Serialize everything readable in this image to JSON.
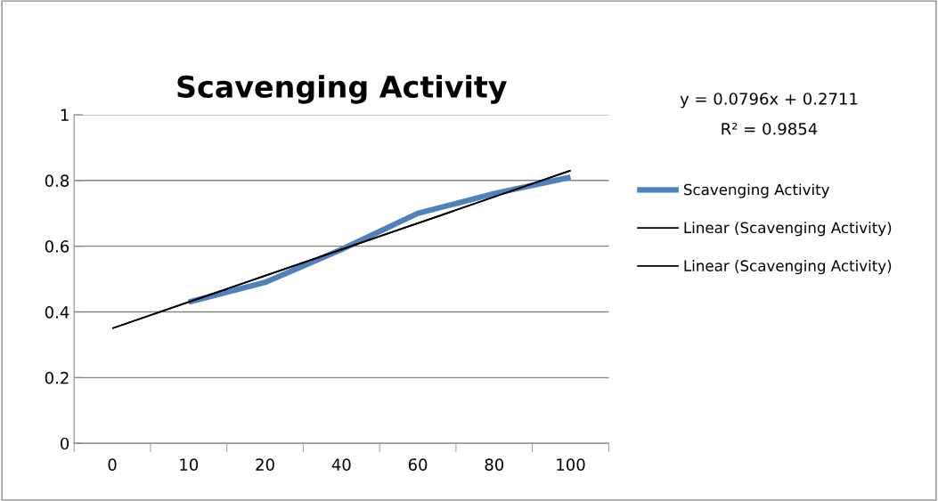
{
  "chart_data": {
    "type": "line",
    "title": "Scavenging Activity",
    "categories": [
      "0",
      "10",
      "20",
      "40",
      "60",
      "80",
      "100"
    ],
    "series": [
      {
        "name": "Scavenging Activity",
        "color": "#4f81bd",
        "values": [
          null,
          0.43,
          0.49,
          0.59,
          0.7,
          0.76,
          0.81
        ]
      },
      {
        "name": "Linear (Scavenging Activity)",
        "color": "#000000",
        "values": [
          0.35,
          0.43,
          0.51,
          0.59,
          0.67,
          0.75,
          0.83
        ]
      },
      {
        "name": "Linear (Scavenging Activity)",
        "color": "#000000",
        "values": [
          0.35,
          0.43,
          0.51,
          0.59,
          0.67,
          0.75,
          0.83
        ]
      }
    ],
    "annotations": [
      "y = 0.0796x + 0.2711",
      "R² = 0.9854"
    ],
    "ylim": [
      0,
      1
    ],
    "yticks": [
      0,
      0.2,
      0.4,
      0.6,
      0.8,
      1
    ],
    "grid": "y",
    "legend": "right",
    "marker": "none",
    "line_style": "solid"
  }
}
